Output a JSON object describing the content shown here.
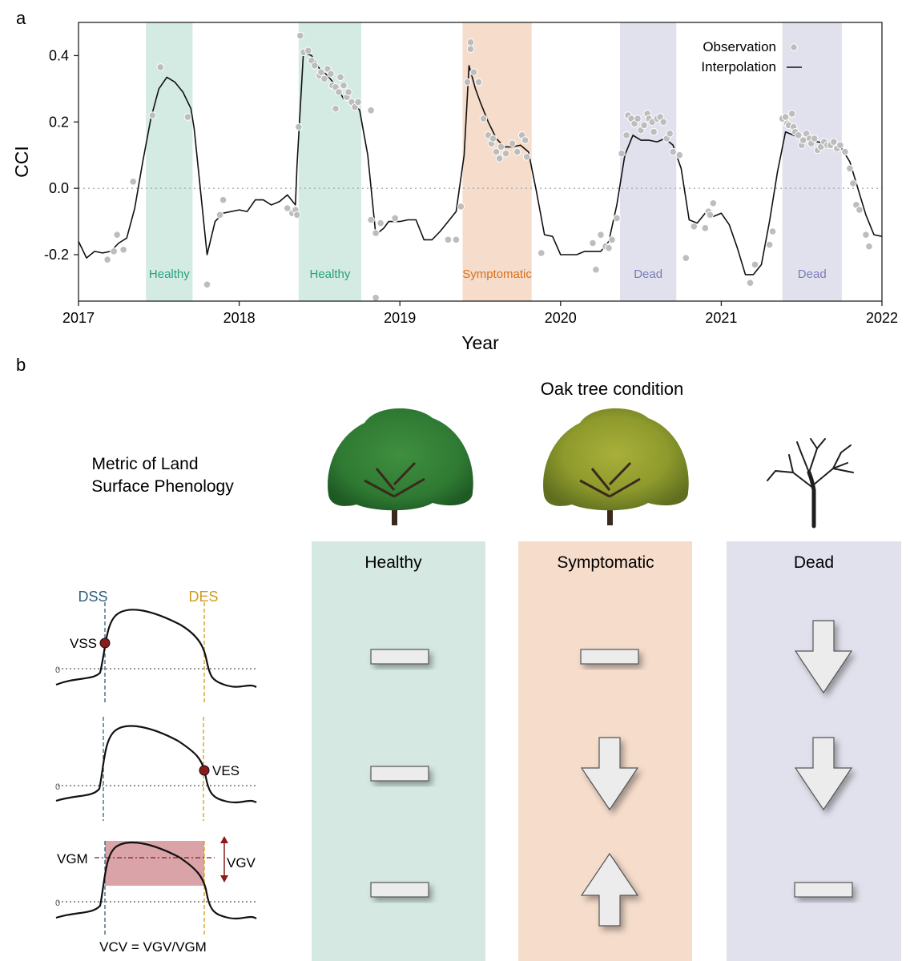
{
  "panel_a": {
    "label": "a"
  },
  "panel_b": {
    "label": "b"
  },
  "chart_data": {
    "type": "line",
    "title": "",
    "xlabel": "Year",
    "ylabel": "CCI",
    "xlim": [
      2017,
      2022
    ],
    "ylim": [
      -0.34,
      0.5
    ],
    "xticks": [
      2017,
      2018,
      2019,
      2020,
      2021,
      2022
    ],
    "yticks": [
      -0.2,
      0.0,
      0.2,
      0.4
    ],
    "ytick_labels": [
      "-0.2",
      "0.0",
      "0.2",
      "0.4"
    ],
    "zero_line": "dotted",
    "legend": {
      "position": "top-right",
      "observation": "Observation",
      "interpolation": "Interpolation"
    },
    "colors": {
      "healthy": "#2aa07e",
      "symptomatic": "#d9711b",
      "dead": "#7b7bb8",
      "healthy_fill": "#d3ebe3",
      "symptomatic_fill": "#f6dccb",
      "dead_fill": "#e1e1ee",
      "points": "#bdbdbd",
      "line": "#111111"
    },
    "phases": [
      {
        "label": "Healthy",
        "kind": "healthy",
        "x0": 2017.42,
        "x1": 2017.71
      },
      {
        "label": "Healthy",
        "kind": "healthy",
        "x0": 2018.37,
        "x1": 2018.76
      },
      {
        "label": "Symptomatic",
        "kind": "symptomatic",
        "x0": 2019.39,
        "x1": 2019.82
      },
      {
        "label": "Dead",
        "kind": "dead",
        "x0": 2020.37,
        "x1": 2020.72
      },
      {
        "label": "Dead",
        "kind": "dead",
        "x0": 2021.38,
        "x1": 2021.75
      }
    ],
    "series": [
      {
        "name": "Interpolation",
        "kind": "line",
        "points": [
          [
            2017.0,
            -0.16
          ],
          [
            2017.05,
            -0.21
          ],
          [
            2017.1,
            -0.19
          ],
          [
            2017.15,
            -0.195
          ],
          [
            2017.2,
            -0.19
          ],
          [
            2017.25,
            -0.165
          ],
          [
            2017.3,
            -0.15
          ],
          [
            2017.35,
            -0.06
          ],
          [
            2017.4,
            0.08
          ],
          [
            2017.45,
            0.21
          ],
          [
            2017.5,
            0.3
          ],
          [
            2017.55,
            0.335
          ],
          [
            2017.6,
            0.32
          ],
          [
            2017.65,
            0.29
          ],
          [
            2017.7,
            0.24
          ],
          [
            2017.72,
            0.18
          ],
          [
            2017.8,
            -0.2
          ],
          [
            2017.85,
            -0.1
          ],
          [
            2017.9,
            -0.075
          ],
          [
            2018.0,
            -0.065
          ],
          [
            2018.05,
            -0.07
          ],
          [
            2018.1,
            -0.035
          ],
          [
            2018.15,
            -0.035
          ],
          [
            2018.2,
            -0.05
          ],
          [
            2018.25,
            -0.04
          ],
          [
            2018.3,
            -0.02
          ],
          [
            2018.35,
            -0.05
          ],
          [
            2018.36,
            0.07
          ],
          [
            2018.4,
            0.41
          ],
          [
            2018.45,
            0.4
          ],
          [
            2018.5,
            0.36
          ],
          [
            2018.55,
            0.34
          ],
          [
            2018.6,
            0.31
          ],
          [
            2018.65,
            0.27
          ],
          [
            2018.7,
            0.265
          ],
          [
            2018.75,
            0.235
          ],
          [
            2018.8,
            0.1
          ],
          [
            2018.85,
            -0.14
          ],
          [
            2018.9,
            -0.12
          ],
          [
            2018.93,
            -0.1
          ],
          [
            2019.0,
            -0.1
          ],
          [
            2019.05,
            -0.095
          ],
          [
            2019.1,
            -0.095
          ],
          [
            2019.15,
            -0.155
          ],
          [
            2019.2,
            -0.155
          ],
          [
            2019.25,
            -0.13
          ],
          [
            2019.3,
            -0.1
          ],
          [
            2019.35,
            -0.07
          ],
          [
            2019.4,
            0.1
          ],
          [
            2019.43,
            0.37
          ],
          [
            2019.47,
            0.3
          ],
          [
            2019.5,
            0.26
          ],
          [
            2019.55,
            0.2
          ],
          [
            2019.6,
            0.15
          ],
          [
            2019.65,
            0.125
          ],
          [
            2019.7,
            0.125
          ],
          [
            2019.75,
            0.13
          ],
          [
            2019.8,
            0.11
          ],
          [
            2019.85,
            -0.01
          ],
          [
            2019.9,
            -0.14
          ],
          [
            2019.95,
            -0.145
          ],
          [
            2020.0,
            -0.2
          ],
          [
            2020.05,
            -0.2
          ],
          [
            2020.1,
            -0.2
          ],
          [
            2020.15,
            -0.19
          ],
          [
            2020.2,
            -0.19
          ],
          [
            2020.25,
            -0.19
          ],
          [
            2020.3,
            -0.16
          ],
          [
            2020.35,
            -0.05
          ],
          [
            2020.4,
            0.1
          ],
          [
            2020.45,
            0.16
          ],
          [
            2020.5,
            0.145
          ],
          [
            2020.55,
            0.145
          ],
          [
            2020.6,
            0.14
          ],
          [
            2020.65,
            0.15
          ],
          [
            2020.7,
            0.13
          ],
          [
            2020.75,
            0.06
          ],
          [
            2020.8,
            -0.095
          ],
          [
            2020.85,
            -0.105
          ],
          [
            2020.9,
            -0.075
          ],
          [
            2020.95,
            -0.085
          ],
          [
            2021.0,
            -0.075
          ],
          [
            2021.05,
            -0.11
          ],
          [
            2021.1,
            -0.18
          ],
          [
            2021.15,
            -0.26
          ],
          [
            2021.2,
            -0.26
          ],
          [
            2021.25,
            -0.23
          ],
          [
            2021.3,
            -0.1
          ],
          [
            2021.35,
            0.05
          ],
          [
            2021.4,
            0.17
          ],
          [
            2021.45,
            0.16
          ],
          [
            2021.5,
            0.15
          ],
          [
            2021.55,
            0.15
          ],
          [
            2021.6,
            0.14
          ],
          [
            2021.65,
            0.135
          ],
          [
            2021.7,
            0.13
          ],
          [
            2021.75,
            0.12
          ],
          [
            2021.8,
            0.08
          ],
          [
            2021.85,
            0.0
          ],
          [
            2021.9,
            -0.08
          ],
          [
            2021.95,
            -0.14
          ],
          [
            2022.0,
            -0.145
          ]
        ]
      },
      {
        "name": "Observation",
        "kind": "scatter",
        "points": [
          [
            2017.18,
            -0.215
          ],
          [
            2017.22,
            -0.19
          ],
          [
            2017.24,
            -0.14
          ],
          [
            2017.28,
            -0.185
          ],
          [
            2017.34,
            0.02
          ],
          [
            2017.46,
            0.22
          ],
          [
            2017.51,
            0.365
          ],
          [
            2017.68,
            0.215
          ],
          [
            2017.8,
            -0.29
          ],
          [
            2017.88,
            -0.08
          ],
          [
            2017.9,
            -0.035
          ],
          [
            2018.3,
            -0.06
          ],
          [
            2018.33,
            -0.075
          ],
          [
            2018.35,
            -0.065
          ],
          [
            2018.36,
            -0.08
          ],
          [
            2018.37,
            0.185
          ],
          [
            2018.38,
            0.46
          ],
          [
            2018.4,
            0.41
          ],
          [
            2018.43,
            0.415
          ],
          [
            2018.45,
            0.385
          ],
          [
            2018.47,
            0.37
          ],
          [
            2018.5,
            0.34
          ],
          [
            2018.51,
            0.35
          ],
          [
            2018.53,
            0.33
          ],
          [
            2018.55,
            0.36
          ],
          [
            2018.57,
            0.345
          ],
          [
            2018.58,
            0.31
          ],
          [
            2018.6,
            0.305
          ],
          [
            2018.6,
            0.24
          ],
          [
            2018.62,
            0.29
          ],
          [
            2018.63,
            0.335
          ],
          [
            2018.65,
            0.31
          ],
          [
            2018.67,
            0.275
          ],
          [
            2018.68,
            0.29
          ],
          [
            2018.7,
            0.26
          ],
          [
            2018.72,
            0.245
          ],
          [
            2018.74,
            0.26
          ],
          [
            2018.82,
            0.235
          ],
          [
            2018.82,
            -0.095
          ],
          [
            2018.85,
            -0.135
          ],
          [
            2018.85,
            -0.33
          ],
          [
            2018.88,
            -0.105
          ],
          [
            2018.97,
            -0.09
          ],
          [
            2019.3,
            -0.155
          ],
          [
            2019.35,
            -0.155
          ],
          [
            2019.38,
            -0.055
          ],
          [
            2019.42,
            0.32
          ],
          [
            2019.44,
            0.44
          ],
          [
            2019.44,
            0.42
          ],
          [
            2019.46,
            0.35
          ],
          [
            2019.49,
            0.32
          ],
          [
            2019.52,
            0.21
          ],
          [
            2019.55,
            0.16
          ],
          [
            2019.57,
            0.135
          ],
          [
            2019.58,
            0.15
          ],
          [
            2019.6,
            0.11
          ],
          [
            2019.62,
            0.09
          ],
          [
            2019.63,
            0.125
          ],
          [
            2019.66,
            0.105
          ],
          [
            2019.7,
            0.135
          ],
          [
            2019.73,
            0.11
          ],
          [
            2019.76,
            0.16
          ],
          [
            2019.78,
            0.145
          ],
          [
            2019.79,
            0.095
          ],
          [
            2019.88,
            -0.195
          ],
          [
            2020.2,
            -0.165
          ],
          [
            2020.22,
            -0.245
          ],
          [
            2020.25,
            -0.14
          ],
          [
            2020.28,
            -0.175
          ],
          [
            2020.3,
            -0.18
          ],
          [
            2020.32,
            -0.155
          ],
          [
            2020.35,
            -0.09
          ],
          [
            2020.38,
            0.105
          ],
          [
            2020.41,
            0.16
          ],
          [
            2020.42,
            0.22
          ],
          [
            2020.44,
            0.21
          ],
          [
            2020.46,
            0.195
          ],
          [
            2020.48,
            0.21
          ],
          [
            2020.5,
            0.175
          ],
          [
            2020.52,
            0.19
          ],
          [
            2020.54,
            0.225
          ],
          [
            2020.55,
            0.21
          ],
          [
            2020.57,
            0.2
          ],
          [
            2020.58,
            0.17
          ],
          [
            2020.6,
            0.21
          ],
          [
            2020.62,
            0.215
          ],
          [
            2020.64,
            0.2
          ],
          [
            2020.66,
            0.15
          ],
          [
            2020.68,
            0.165
          ],
          [
            2020.7,
            0.11
          ],
          [
            2020.74,
            0.1
          ],
          [
            2020.78,
            -0.21
          ],
          [
            2020.83,
            -0.115
          ],
          [
            2020.9,
            -0.12
          ],
          [
            2020.92,
            -0.07
          ],
          [
            2020.93,
            -0.08
          ],
          [
            2020.95,
            -0.045
          ],
          [
            2021.18,
            -0.285
          ],
          [
            2021.21,
            -0.23
          ],
          [
            2021.3,
            -0.17
          ],
          [
            2021.32,
            -0.13
          ],
          [
            2021.38,
            0.21
          ],
          [
            2021.4,
            0.215
          ],
          [
            2021.41,
            0.195
          ],
          [
            2021.42,
            0.19
          ],
          [
            2021.44,
            0.225
          ],
          [
            2021.45,
            0.185
          ],
          [
            2021.46,
            0.17
          ],
          [
            2021.48,
            0.16
          ],
          [
            2021.5,
            0.13
          ],
          [
            2021.51,
            0.145
          ],
          [
            2021.53,
            0.165
          ],
          [
            2021.55,
            0.15
          ],
          [
            2021.56,
            0.135
          ],
          [
            2021.58,
            0.15
          ],
          [
            2021.6,
            0.115
          ],
          [
            2021.62,
            0.125
          ],
          [
            2021.64,
            0.14
          ],
          [
            2021.66,
            0.13
          ],
          [
            2021.68,
            0.13
          ],
          [
            2021.7,
            0.14
          ],
          [
            2021.72,
            0.12
          ],
          [
            2021.74,
            0.13
          ],
          [
            2021.77,
            0.11
          ],
          [
            2021.8,
            0.06
          ],
          [
            2021.82,
            0.015
          ],
          [
            2021.84,
            -0.05
          ],
          [
            2021.86,
            -0.065
          ],
          [
            2021.9,
            -0.14
          ],
          [
            2021.92,
            -0.175
          ]
        ]
      }
    ]
  },
  "schematic": {
    "header": "Oak tree condition",
    "metric_heading_line1": "Metric of Land",
    "metric_heading_line2": "Surface Phenology",
    "columns": [
      {
        "label": "Healthy",
        "kind": "healthy",
        "tree": "full-green-canopy",
        "trends": [
          "stable",
          "stable",
          "stable"
        ]
      },
      {
        "label": "Symptomatic",
        "kind": "symptomatic",
        "tree": "yellowing-canopy",
        "trends": [
          "stable",
          "decrease",
          "increase"
        ]
      },
      {
        "label": "Dead",
        "kind": "dead",
        "tree": "bare-branches",
        "trends": [
          "decrease",
          "decrease",
          "stable"
        ]
      }
    ],
    "metric_labels": {
      "dss": "DSS",
      "des": "DES",
      "vss": "VSS",
      "ves": "VES",
      "vgm": "VGM",
      "vgv": "VGV",
      "zero": "0",
      "formula": "VCV = VGV/VGM"
    },
    "colors": {
      "dss": "#2f5f7a",
      "des": "#d29a1c",
      "marker": "#8b1a1a",
      "band": "#d9a3a7"
    }
  }
}
